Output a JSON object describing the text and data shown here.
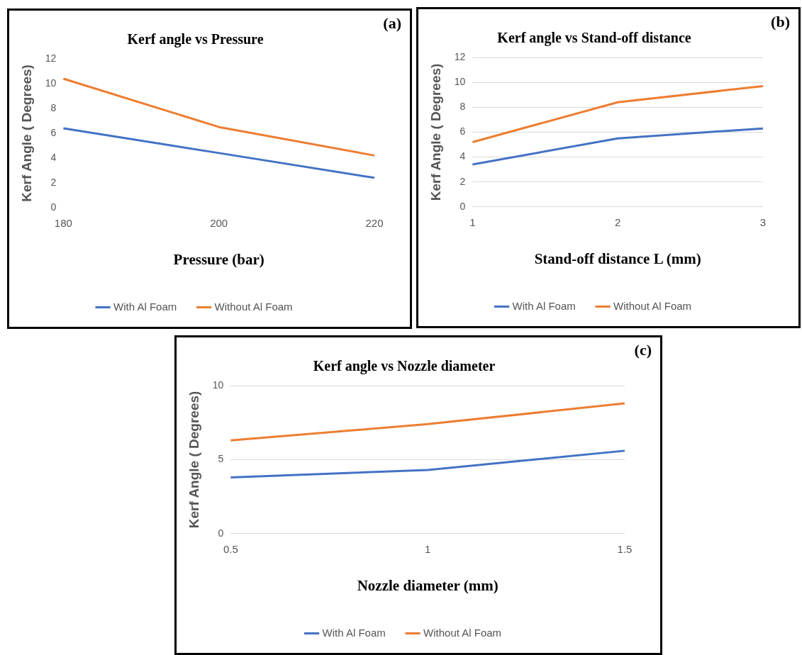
{
  "chart_data": [
    {
      "type": "line",
      "title": "Kerf angle vs Pressure",
      "xlabel": "Pressure (bar)",
      "ylabel": "Kerf Angle ( Degrees)",
      "categories": [
        "180",
        "200",
        "220"
      ],
      "ylim": [
        0,
        12
      ],
      "yticks": [
        0,
        2,
        4,
        6,
        8,
        10,
        12
      ],
      "grid": false,
      "legend": "bottom",
      "annotations": [
        "(a)"
      ],
      "series": [
        {
          "name": "With Al Foam",
          "color": "#4472c4",
          "values": [
            6.4,
            4.4,
            2.4
          ]
        },
        {
          "name": "Without Al Foam",
          "color": "#ed7d31",
          "values": [
            10.4,
            6.5,
            4.2
          ]
        }
      ]
    },
    {
      "type": "line",
      "title": "Kerf angle vs Stand-off distance",
      "xlabel": "Stand-off distance L (mm)",
      "ylabel": "Kerf Angle ( Degrees)",
      "categories": [
        "1",
        "2",
        "3"
      ],
      "ylim": [
        0,
        12
      ],
      "yticks": [
        0,
        2,
        4,
        6,
        8,
        10,
        12
      ],
      "grid": "y",
      "legend": "bottom",
      "annotations": [
        "(b)"
      ],
      "series": [
        {
          "name": "With Al Foam",
          "color": "#4472c4",
          "values": [
            3.4,
            5.5,
            6.3
          ]
        },
        {
          "name": "Without Al Foam",
          "color": "#ed7d31",
          "values": [
            5.2,
            8.4,
            9.7
          ]
        }
      ]
    },
    {
      "type": "line",
      "title": "Kerf angle vs Nozzle diameter",
      "xlabel": "Nozzle diameter (mm)",
      "ylabel": "Kerf Angle ( Degrees)",
      "categories": [
        "0.5",
        "1",
        "1.5"
      ],
      "ylim": [
        0,
        10
      ],
      "yticks": [
        0,
        5,
        10
      ],
      "grid": "y",
      "legend": "bottom",
      "annotations": [
        "(c)"
      ],
      "series": [
        {
          "name": "With Al Foam",
          "color": "#4472c4",
          "values": [
            3.8,
            4.3,
            5.6
          ]
        },
        {
          "name": "Without Al Foam",
          "color": "#ed7d31",
          "values": [
            6.3,
            7.4,
            8.8
          ]
        }
      ]
    }
  ]
}
